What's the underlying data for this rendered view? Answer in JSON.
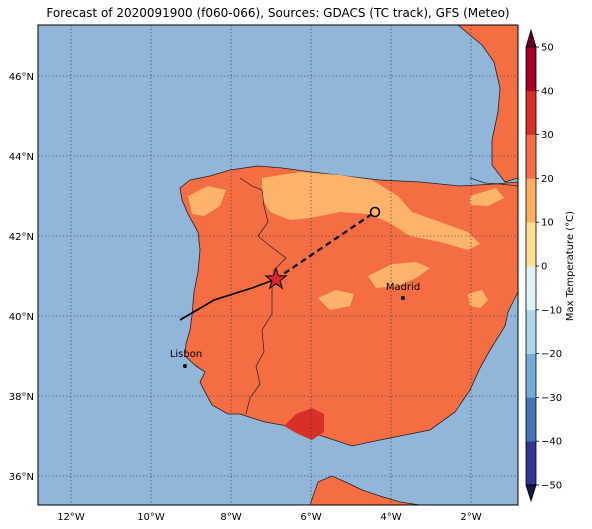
{
  "title": "Forecast of 2020091900 (f060-066), Sources: GDACS (TC track), GFS (Meteo)",
  "lon_ticks": [
    "12°W",
    "10°W",
    "8°W",
    "6°W",
    "4°W",
    "2°W"
  ],
  "lat_ticks": [
    "46°N",
    "44°N",
    "42°N",
    "40°N",
    "38°N",
    "36°N"
  ],
  "colorbar": {
    "label": "Max Temperature (°C)",
    "ticks": [
      "50",
      "40",
      "30",
      "20",
      "10",
      "0",
      "−10",
      "−20",
      "−30",
      "−40",
      "−50"
    ],
    "colors": [
      "#313695",
      "#4575b4",
      "#74add1",
      "#abd9e9",
      "#e0f3f8",
      "#fee090",
      "#fdae61",
      "#f46d43",
      "#d73027",
      "#a50026"
    ]
  },
  "cities": [
    {
      "name": "Madrid"
    },
    {
      "name": "Lisbon"
    }
  ],
  "colors": {
    "sea": "#91b6d9",
    "land_main": "#f46d43",
    "land_cool": "#fdb36b",
    "land_hot": "#d73027",
    "track": "#000000",
    "storm_marker": "#e0242d"
  }
}
